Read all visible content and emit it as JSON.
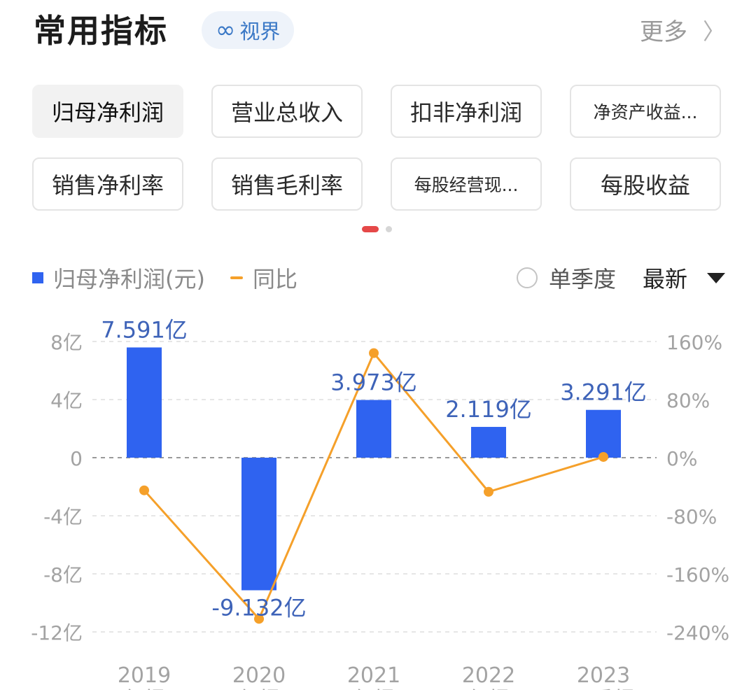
{
  "header": {
    "title": "常用指标",
    "badge_icon": "infinity-icon",
    "badge_icon_glyph": "∞",
    "badge_label": "视界",
    "more_label": "更多",
    "more_chevron": "〉"
  },
  "chips": [
    {
      "label": "归母净利润",
      "active": true
    },
    {
      "label": "营业总收入",
      "active": false
    },
    {
      "label": "扣非净利润",
      "active": false
    },
    {
      "label": "净资产收益...",
      "active": false
    },
    {
      "label": "销售净利率",
      "active": false
    },
    {
      "label": "销售毛利率",
      "active": false
    },
    {
      "label": "每股经营现...",
      "active": false
    },
    {
      "label": "每股收益",
      "active": false
    }
  ],
  "pager": {
    "active_index": 0,
    "count": 2
  },
  "legend": {
    "bar_label": "归母净利润(元)",
    "line_label": "同比"
  },
  "options": {
    "season_label": "单季度",
    "season_checked": false,
    "sort_label": "最新"
  },
  "colors": {
    "bar": "#2f63f0",
    "line": "#f5a02a",
    "value_label": "#3e63b8",
    "axis_text": "#a3a3a3",
    "grid": "#e6e6e6",
    "zero_line": "#9a9a9a",
    "pager_active": "#e54848"
  },
  "chart_data": {
    "type": "bar",
    "categories": [
      "2019",
      "2020",
      "2021",
      "2022",
      "2023"
    ],
    "category_sublabels": [
      "年报",
      "年报",
      "年报",
      "年报",
      "三季报"
    ],
    "series": [
      {
        "name": "归母净利润(元)",
        "type": "bar",
        "values": [
          7.591,
          -9.132,
          3.973,
          2.119,
          3.291
        ],
        "labels": [
          "7.591亿",
          "-9.132亿",
          "3.973亿",
          "2.119亿",
          "3.291亿"
        ]
      },
      {
        "name": "同比",
        "type": "line",
        "axis": "right",
        "values": [
          -45,
          -222,
          144,
          -47,
          1
        ]
      }
    ],
    "y_left": {
      "ylim": [
        -12,
        8
      ],
      "ticks": [
        8,
        4,
        0,
        -4,
        -8,
        -12
      ],
      "tick_labels": [
        "8亿",
        "4亿",
        "0",
        "-4亿",
        "-8亿",
        "-12亿"
      ]
    },
    "y_right": {
      "ylim": [
        -240,
        160
      ],
      "ticks": [
        160,
        80,
        0,
        -80,
        -160,
        -240
      ],
      "tick_labels": [
        "160%",
        "80%",
        "0%",
        "-80%",
        "-160%",
        "-240%"
      ]
    },
    "grid": true,
    "legend": "top-left"
  }
}
